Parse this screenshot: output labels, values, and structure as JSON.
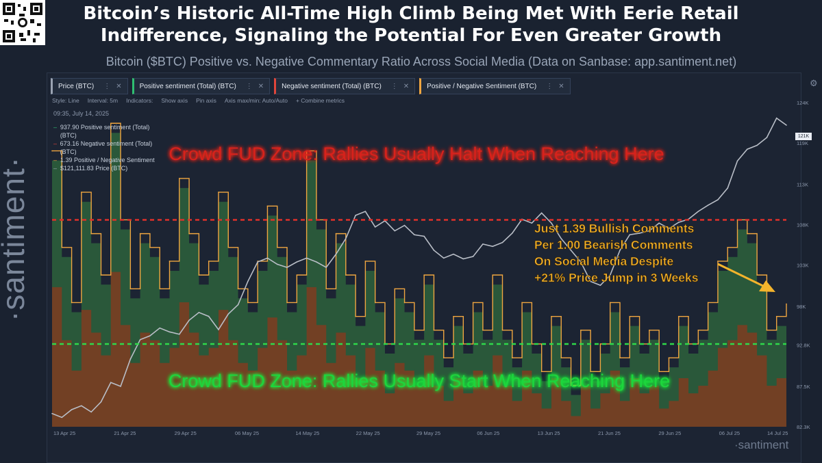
{
  "headline": "Bitcoin’s Historic All-Time High Climb Being Met With Eerie Retail Indifference, Signaling the Potential For Even Greater Growth",
  "subtitle": "Bitcoin ($BTC) Positive vs. Negative Commentary Ratio Across Social Media (Data on Sanbase: app.santiment.net)",
  "watermark": "·santiment·",
  "brand": "·santiment",
  "icons": {
    "settings": "gear-icon",
    "drag": "kebab-icon",
    "close": "close-icon",
    "logo": "santiment-logo-icon"
  },
  "metric_tabs": [
    {
      "label": "Price (BTC)",
      "color": "#9aa3b2"
    },
    {
      "label": "Positive sentiment (Total) (BTC)",
      "color": "#2fbf71"
    },
    {
      "label": "Negative sentiment (Total) (BTC)",
      "color": "#e0453a"
    },
    {
      "label": "Positive / Negative Sentiment (BTC)",
      "color": "#f0a640"
    }
  ],
  "toolbar": {
    "style": "Style: Line",
    "interval": "Interval: 5m",
    "indicators": "Indicators:",
    "show_axis": "Show axis",
    "pin_axis": "Pin axis",
    "axis_maxmin": "Axis max/min: Auto/Auto",
    "combine": "+ Combine metrics"
  },
  "tooltip": {
    "timestamp": "09:35, July 14, 2025",
    "rows": [
      {
        "text": "937.90 Positive sentiment (Total) (BTC)",
        "color": "#2fbf71"
      },
      {
        "text": "673.16 Negative sentiment (Total) (BTC)",
        "color": "#e0453a"
      },
      {
        "text": "1.39 Positive / Negative Sentiment",
        "color": "#f0a640"
      },
      {
        "text": "$121,111.83 Price (BTC)",
        "color": "#9aa3b2"
      }
    ]
  },
  "current_price_tag": "121K",
  "annotations": {
    "top_zone": "Crowd FUD Zone: Rallies Usually Halt When Reaching Here",
    "bottom_zone": "Crowd FUD Zone: Rallies Usually Start When Reaching Here",
    "callout": [
      "Just 1.39 Bullish Comments",
      "Per 1.00 Bearish Comments",
      "On Social Media Despite",
      "+21% Price Jump in 3 Weeks"
    ]
  },
  "colors": {
    "background": "#1a2230",
    "price": "#b9bec7",
    "ratio": "#f0a640",
    "positive": "#2f6a3e",
    "negative": "#7a3e22",
    "top_line": "#e0302a",
    "bottom_line": "#2fd94a"
  },
  "chart_data": {
    "type": "line",
    "x_tick_labels": [
      "13 Apr 25",
      "21 Apr 25",
      "29 Apr 25",
      "06 May 25",
      "14 May 25",
      "22 May 25",
      "29 May 25",
      "06 Jun 25",
      "13 Jun 25",
      "21 Jun 25",
      "29 Jun 25",
      "06 Jul 25",
      "14 Jul 25"
    ],
    "y_tick_labels": [
      "124K",
      "119K",
      "113K",
      "108K",
      "103K",
      "98K",
      "92.8K",
      "87.5K",
      "82.3K"
    ],
    "ylim": [
      82300,
      124000
    ],
    "ratio_thresholds": {
      "top": 2.0,
      "bottom": 1.1
    },
    "series": [
      {
        "name": "Price (BTC)",
        "values": [
          84000,
          83500,
          84500,
          85000,
          84200,
          85500,
          88000,
          87500,
          91000,
          93500,
          94000,
          95000,
          94500,
          94200,
          96000,
          97000,
          96500,
          94800,
          96800,
          98000,
          101000,
          103500,
          104000,
          103200,
          102800,
          103500,
          104000,
          103500,
          102800,
          104500,
          106500,
          109500,
          110000,
          108000,
          108800,
          107500,
          108200,
          107000,
          106800,
          105000,
          104000,
          104500,
          103900,
          104200,
          105800,
          105500,
          106000,
          107200,
          109000,
          108500,
          109800,
          108500,
          106500,
          105000,
          103500,
          101000,
          100500,
          101800,
          105000,
          107000,
          107200,
          107500,
          108500,
          107800,
          108600,
          109000,
          110000,
          110800,
          111500,
          113000,
          116500,
          118000,
          118500,
          119500,
          122000,
          121100
        ]
      },
      {
        "name": "Positive / Negative Sentiment (BTC)",
        "values": [
          2.5,
          1.8,
          1.4,
          2.2,
          1.9,
          1.6,
          2.7,
          2.0,
          1.5,
          1.9,
          1.8,
          1.5,
          1.7,
          2.3,
          1.9,
          1.6,
          1.7,
          2.2,
          1.8,
          1.5,
          1.4,
          1.7,
          2.1,
          1.8,
          1.4,
          1.6,
          2.5,
          2.0,
          1.5,
          1.9,
          1.6,
          1.3,
          1.7,
          1.4,
          1.1,
          1.5,
          1.4,
          1.2,
          1.6,
          1.2,
          1.0,
          1.3,
          1.1,
          1.4,
          1.2,
          1.6,
          1.2,
          1.0,
          1.4,
          1.1,
          0.9,
          1.3,
          1.0,
          0.8,
          1.2,
          0.9,
          1.1,
          1.4,
          1.0,
          1.3,
          1.1,
          1.2,
          0.9,
          1.0,
          1.3,
          1.1,
          1.2,
          1.4,
          1.7,
          1.8,
          2.0,
          1.9,
          1.6,
          1.2,
          1.3,
          1.39
        ]
      }
    ]
  }
}
